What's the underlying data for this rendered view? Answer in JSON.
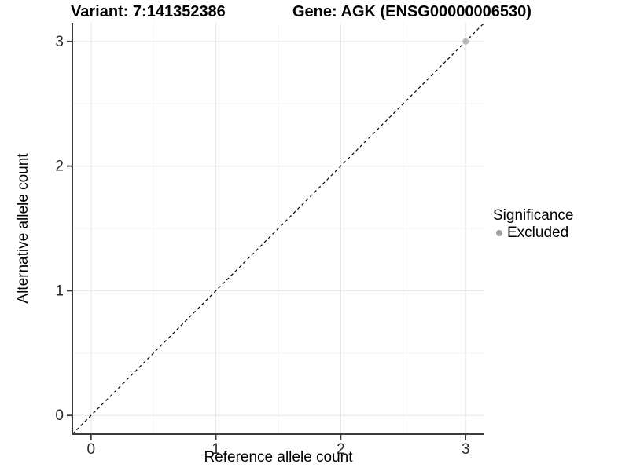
{
  "chart_data": {
    "type": "scatter",
    "titles": {
      "left": "Variant: 7:141352386",
      "right": "Gene: AGK (ENSG00000006530)"
    },
    "xlabel": "Reference allele count",
    "ylabel": "Alternative allele count",
    "xlim": [
      -0.15,
      3.15
    ],
    "ylim": [
      -0.15,
      3.15
    ],
    "x_ticks": [
      0,
      1,
      2,
      3
    ],
    "y_ticks": [
      0,
      1,
      2,
      3
    ],
    "grid": {
      "major": true,
      "minor": true
    },
    "reference_line": {
      "slope": 1,
      "intercept": 0,
      "style": "dashed",
      "color": "#000000"
    },
    "series": [
      {
        "name": "Excluded",
        "color": "#b5b5b5",
        "points": [
          [
            3,
            3
          ]
        ]
      }
    ],
    "legend": {
      "position": "right",
      "title": "Significance",
      "items": [
        {
          "label": "Excluded",
          "color": "#a0a0a0"
        }
      ]
    },
    "colors": {
      "grid_major": "#e9e9e9",
      "grid_minor": "#f5f5f5",
      "axis_line": "#3c3c3c",
      "tick_mark": "#3c3c3c",
      "tick_label": "#2b2b2b"
    }
  }
}
